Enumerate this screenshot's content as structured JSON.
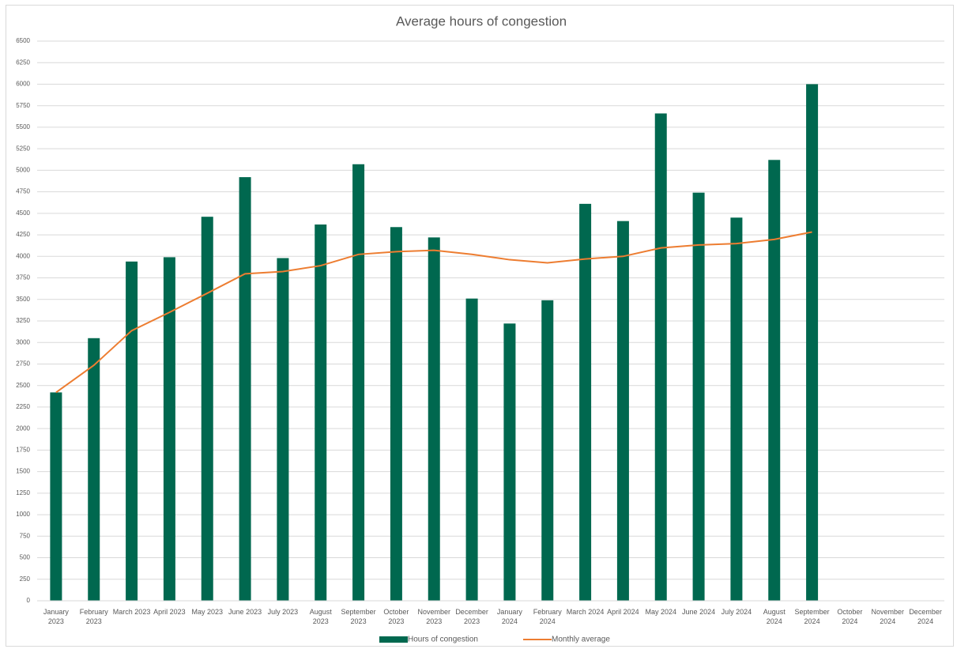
{
  "chart_data": {
    "type": "bar",
    "title": "Average hours of congestion",
    "categories": [
      "January 2023",
      "February 2023",
      "March 2023",
      "April 2023",
      "May 2023",
      "June 2023",
      "July 2023",
      "August 2023",
      "September 2023",
      "October 2023",
      "November 2023",
      "December 2023",
      "January 2024",
      "February 2024",
      "March 2024",
      "April 2024",
      "May 2024",
      "June 2024",
      "July 2024",
      "August 2024",
      "September 2024",
      "October 2024",
      "November 2024",
      "December 2024"
    ],
    "series": [
      {
        "name": "Hours of congestion",
        "type": "bar",
        "color": "#00684f",
        "values": [
          2420,
          3050,
          3940,
          3990,
          4460,
          4920,
          3980,
          4370,
          5070,
          4340,
          4220,
          3510,
          3220,
          3490,
          4610,
          4410,
          5660,
          4740,
          4450,
          5120,
          6000,
          null,
          null,
          null
        ]
      },
      {
        "name": "Monthly average",
        "type": "line",
        "color": "#ed7d31",
        "values": [
          2420,
          2735,
          3137,
          3350,
          3572,
          3797,
          3824,
          3892,
          4023,
          4055,
          4070,
          4023,
          3961,
          3925,
          3970,
          4000,
          4098,
          4132,
          4149,
          4197,
          4283,
          null,
          null,
          null
        ]
      }
    ],
    "ylim": [
      0,
      6500
    ],
    "yticks": [
      0,
      250,
      500,
      750,
      1000,
      1250,
      1500,
      1750,
      2000,
      2250,
      2500,
      2750,
      3000,
      3250,
      3500,
      3750,
      4000,
      4250,
      4500,
      4750,
      5000,
      5250,
      5500,
      5750,
      6000,
      6250,
      6500
    ],
    "grid": true,
    "legend": "bottom"
  }
}
